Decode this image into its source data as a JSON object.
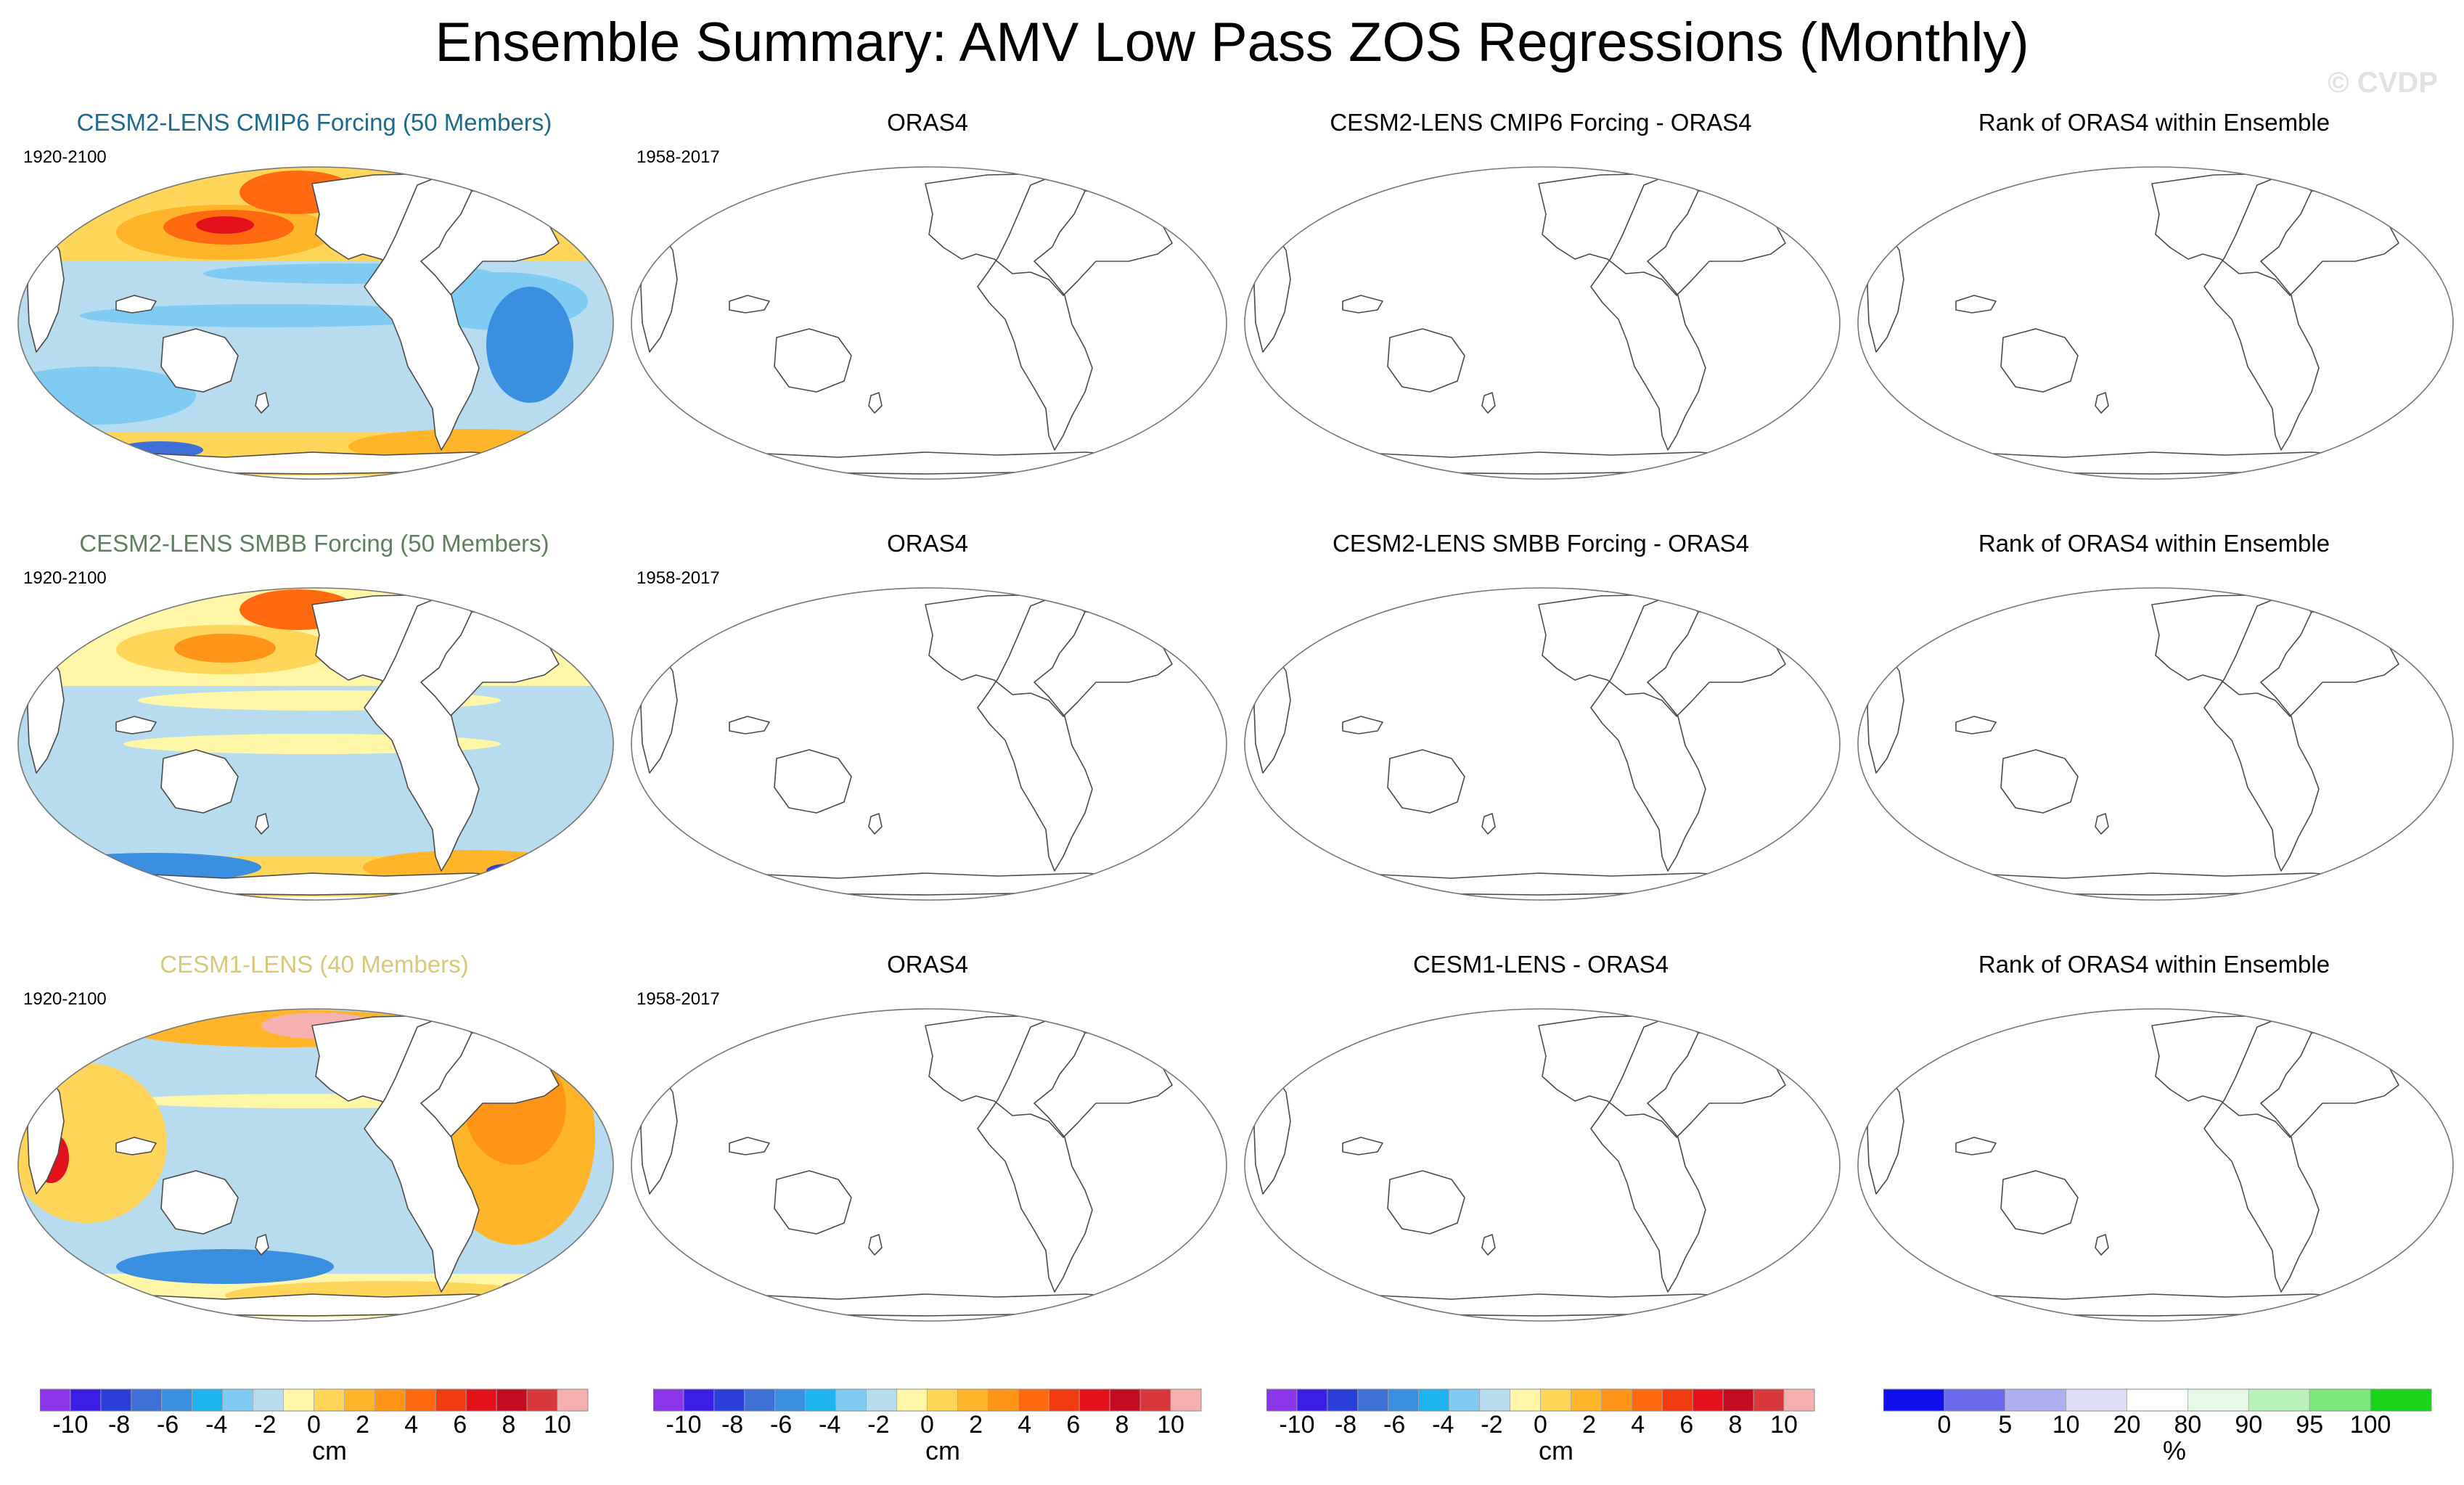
{
  "title": "Ensemble Summary: AMV Low Pass ZOS Regressions (Monthly)",
  "watermark": "© CVDP",
  "rows": [
    {
      "panels": [
        {
          "title": "CESM2-LENS CMIP6 Forcing (50 Members)",
          "title_color": "#1e6a8c",
          "years": "1920-2100",
          "field": "cmip6"
        },
        {
          "title": "ORAS4",
          "years": "1958-2017",
          "field": "empty"
        },
        {
          "title": "CESM2-LENS CMIP6 Forcing - ORAS4",
          "years": "",
          "field": "empty"
        },
        {
          "title": "Rank of ORAS4 within Ensemble",
          "years": "",
          "field": "empty"
        }
      ]
    },
    {
      "panels": [
        {
          "title": "CESM2-LENS SMBB Forcing (50 Members)",
          "title_color": "#5f7f5f",
          "years": "1920-2100",
          "field": "smbb"
        },
        {
          "title": "ORAS4",
          "years": "1958-2017",
          "field": "empty"
        },
        {
          "title": "CESM2-LENS SMBB Forcing - ORAS4",
          "years": "",
          "field": "empty"
        },
        {
          "title": "Rank of ORAS4 within Ensemble",
          "years": "",
          "field": "empty"
        }
      ]
    },
    {
      "panels": [
        {
          "title": "CESM1-LENS (40 Members)",
          "title_color": "#d9c87a",
          "years": "1920-2100",
          "field": "cesm1"
        },
        {
          "title": "ORAS4",
          "years": "1958-2017",
          "field": "empty"
        },
        {
          "title": "CESM1-LENS - ORAS4",
          "years": "",
          "field": "empty"
        },
        {
          "title": "Rank of ORAS4 within Ensemble",
          "years": "",
          "field": "empty"
        }
      ]
    }
  ],
  "chart_data": {
    "type": "heatmap",
    "title": "Ensemble Summary: AMV Low Pass ZOS Regressions (Monthly)",
    "projection": "Robinson, Pacific-centered",
    "variable": "ZOS regression on low-pass AMV",
    "units": "cm",
    "panels_with_data": [
      "CESM2-LENS CMIP6 Forcing (50 Members)",
      "CESM2-LENS SMBB Forcing (50 Members)",
      "CESM1-LENS (40 Members)"
    ],
    "regions_cm": {
      "cmip6": {
        "north_pacific": 6,
        "north_atlantic": 8,
        "arctic": 4,
        "tropical_pacific": -4,
        "southern_ocean": 2,
        "indian_ocean": -2,
        "tropical_atlantic": -2
      },
      "smbb": {
        "north_pacific": 4,
        "north_atlantic": 8,
        "arctic": 4,
        "tropical_pacific": -2,
        "southern_ocean": 2,
        "indian_ocean": -2,
        "tropical_atlantic": 0
      },
      "cesm1": {
        "north_pacific": 0,
        "north_atlantic": 6,
        "arctic": 6,
        "tropical_pacific": -2,
        "southern_ocean": -4,
        "indian_ocean": 2,
        "tropical_atlantic": 4
      }
    },
    "colorbars": [
      {
        "ticks": [
          "-10",
          "-8",
          "-6",
          "-4",
          "-2",
          "0",
          "2",
          "4",
          "6",
          "8",
          "10"
        ],
        "unit": "cm",
        "colors": [
          "#8b35e8",
          "#3a1ee6",
          "#2a3fd8",
          "#3e6fd6",
          "#3a8fe0",
          "#1eb4f0",
          "#7fcbf2",
          "#b7dcef",
          "#fff6a8",
          "#ffd65a",
          "#ffb52a",
          "#ff9516",
          "#ff6a10",
          "#f03a10",
          "#e3121a",
          "#c40c20",
          "#d8383a",
          "#f5b0b0"
        ]
      },
      {
        "ticks": [
          "-10",
          "-8",
          "-6",
          "-4",
          "-2",
          "0",
          "2",
          "4",
          "6",
          "8",
          "10"
        ],
        "unit": "cm",
        "colors": [
          "#8b35e8",
          "#3a1ee6",
          "#2a3fd8",
          "#3e6fd6",
          "#3a8fe0",
          "#1eb4f0",
          "#7fcbf2",
          "#b7dcef",
          "#fff6a8",
          "#ffd65a",
          "#ffb52a",
          "#ff9516",
          "#ff6a10",
          "#f03a10",
          "#e3121a",
          "#c40c20",
          "#d8383a",
          "#f5b0b0"
        ]
      },
      {
        "ticks": [
          "-10",
          "-8",
          "-6",
          "-4",
          "-2",
          "0",
          "2",
          "4",
          "6",
          "8",
          "10"
        ],
        "unit": "cm",
        "colors": [
          "#8b35e8",
          "#3a1ee6",
          "#2a3fd8",
          "#3e6fd6",
          "#3a8fe0",
          "#1eb4f0",
          "#7fcbf2",
          "#b7dcef",
          "#fff6a8",
          "#ffd65a",
          "#ffb52a",
          "#ff9516",
          "#ff6a10",
          "#f03a10",
          "#e3121a",
          "#c40c20",
          "#d8383a",
          "#f5b0b0"
        ]
      },
      {
        "ticks": [
          "0",
          "5",
          "10",
          "20",
          "80",
          "90",
          "95",
          "100"
        ],
        "unit": "%",
        "colors": [
          "#1010ee",
          "#6a6aee",
          "#b0b0f0",
          "#dedef8",
          "#ffffff",
          "#e6f8e6",
          "#b8f2b8",
          "#7ae87a",
          "#1ad41a"
        ]
      }
    ]
  }
}
